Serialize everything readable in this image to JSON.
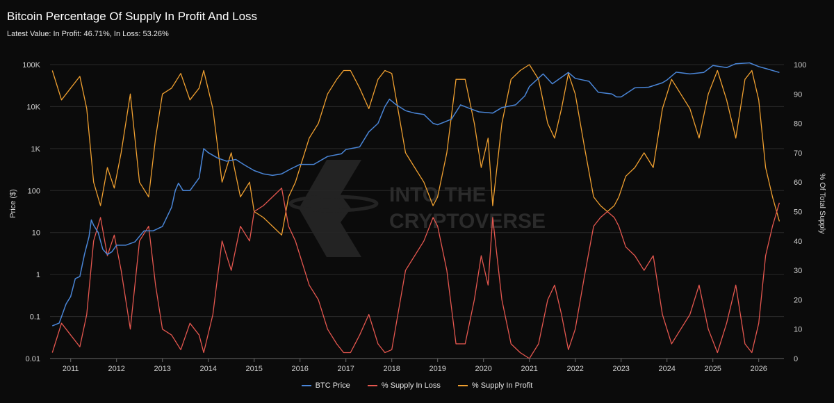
{
  "header": {
    "title": "Bitcoin Percentage Of Supply In Profit And Loss",
    "subtitle": "Latest Value: In Profit: 46.71%, In Loss: 53.26%"
  },
  "watermark": {
    "line1": "INTO THE",
    "line2": "CRYPTOVERSE"
  },
  "colors": {
    "background": "#0b0b0b",
    "price": "#4a86d8",
    "loss": "#e5574f",
    "profit": "#f0a030",
    "grid": "#2a2a2a"
  },
  "chart_data": {
    "type": "line",
    "title": "Bitcoin Percentage Of Supply In Profit And Loss",
    "subtitle": "Latest Value: In Profit: 46.71%, In Loss: 53.26%",
    "xlabel": "",
    "y_left_label": "Price ($)",
    "y_right_label": "% Of Total Supply",
    "x_range": [
      2010.55,
      2026.55
    ],
    "x_ticks": [
      "2011",
      "2012",
      "2013",
      "2014",
      "2015",
      "2016",
      "2017",
      "2018",
      "2019",
      "2020",
      "2021",
      "2022",
      "2023",
      "2024",
      "2025",
      "2026"
    ],
    "y_left_scale": "log",
    "y_left_range": [
      0.01,
      100000
    ],
    "y_left_ticks": [
      "0.01",
      "0.1",
      "1",
      "10",
      "100",
      "1K",
      "10K",
      "100K"
    ],
    "y_right_range": [
      0,
      100
    ],
    "y_right_ticks": [
      "0",
      "10",
      "20",
      "30",
      "40",
      "50",
      "60",
      "70",
      "80",
      "90",
      "100"
    ],
    "grid": "horizontal",
    "legend_position": "bottom-center",
    "latest": {
      "in_profit": 46.71,
      "in_loss": 53.26
    },
    "series": [
      {
        "name": "BTC Price",
        "axis": "left",
        "x": [
          2010.6,
          2010.75,
          2010.9,
          2011.0,
          2011.1,
          2011.2,
          2011.3,
          2011.4,
          2011.45,
          2011.5,
          2011.6,
          2011.7,
          2011.8,
          2011.9,
          2012.0,
          2012.2,
          2012.4,
          2012.6,
          2012.8,
          2013.0,
          2013.2,
          2013.28,
          2013.35,
          2013.45,
          2013.6,
          2013.8,
          2013.9,
          2014.0,
          2014.2,
          2014.4,
          2014.6,
          2014.8,
          2015.0,
          2015.2,
          2015.4,
          2015.6,
          2015.8,
          2016.0,
          2016.3,
          2016.6,
          2016.9,
          2017.0,
          2017.3,
          2017.5,
          2017.7,
          2017.85,
          2017.95,
          2018.1,
          2018.3,
          2018.5,
          2018.7,
          2018.9,
          2019.0,
          2019.3,
          2019.5,
          2019.7,
          2019.9,
          2020.2,
          2020.4,
          2020.7,
          2020.9,
          2021.0,
          2021.3,
          2021.5,
          2021.85,
          2022.0,
          2022.3,
          2022.5,
          2022.8,
          2022.9,
          2023.0,
          2023.3,
          2023.6,
          2023.9,
          2024.0,
          2024.2,
          2024.5,
          2024.8,
          2025.0,
          2025.3,
          2025.5,
          2025.8,
          2026.0,
          2026.2,
          2026.45
        ],
        "y": [
          0.06,
          0.07,
          0.2,
          0.3,
          0.8,
          0.9,
          3,
          8,
          20,
          15,
          10,
          4,
          3,
          3.5,
          5,
          5,
          6,
          11,
          11,
          14,
          40,
          100,
          150,
          100,
          100,
          200,
          1000,
          800,
          600,
          500,
          550,
          400,
          300,
          250,
          230,
          250,
          330,
          420,
          420,
          650,
          750,
          950,
          1100,
          2500,
          4000,
          10000,
          15000,
          11000,
          8000,
          7000,
          6500,
          4000,
          3700,
          5000,
          11000,
          9000,
          7500,
          7000,
          9500,
          11000,
          18000,
          30000,
          60000,
          35000,
          65000,
          47000,
          40000,
          22000,
          20000,
          17000,
          17000,
          28000,
          29000,
          37000,
          43000,
          66000,
          60000,
          65000,
          95000,
          85000,
          105000,
          110000,
          90000,
          78000,
          65000
        ]
      },
      {
        "name": "% Supply In Loss",
        "axis": "right",
        "x": [
          2010.6,
          2010.8,
          2011.0,
          2011.2,
          2011.35,
          2011.5,
          2011.65,
          2011.8,
          2011.95,
          2012.1,
          2012.3,
          2012.5,
          2012.7,
          2012.85,
          2013.0,
          2013.2,
          2013.4,
          2013.6,
          2013.8,
          2013.9,
          2014.1,
          2014.3,
          2014.5,
          2014.7,
          2014.9,
          2015.0,
          2015.2,
          2015.4,
          2015.6,
          2015.75,
          2015.9,
          2016.0,
          2016.2,
          2016.4,
          2016.6,
          2016.8,
          2016.95,
          2017.1,
          2017.3,
          2017.5,
          2017.7,
          2017.85,
          2018.0,
          2018.1,
          2018.3,
          2018.5,
          2018.7,
          2018.9,
          2019.0,
          2019.2,
          2019.4,
          2019.6,
          2019.8,
          2019.95,
          2020.1,
          2020.2,
          2020.4,
          2020.6,
          2020.8,
          2021.0,
          2021.2,
          2021.4,
          2021.55,
          2021.7,
          2021.85,
          2022.0,
          2022.2,
          2022.4,
          2022.55,
          2022.7,
          2022.85,
          2022.95,
          2023.1,
          2023.3,
          2023.5,
          2023.7,
          2023.9,
          2024.1,
          2024.3,
          2024.5,
          2024.7,
          2024.9,
          2025.1,
          2025.3,
          2025.5,
          2025.7,
          2025.85,
          2026.0,
          2026.15,
          2026.3,
          2026.45
        ],
        "y": [
          2,
          12,
          8,
          4,
          15,
          40,
          48,
          35,
          42,
          30,
          10,
          40,
          45,
          25,
          10,
          8,
          3,
          12,
          8,
          2,
          15,
          40,
          30,
          45,
          40,
          50,
          52,
          55,
          58,
          45,
          40,
          35,
          25,
          20,
          10,
          5,
          2,
          2,
          8,
          15,
          5,
          2,
          3,
          12,
          30,
          35,
          40,
          48,
          45,
          30,
          5,
          5,
          20,
          35,
          25,
          48,
          20,
          5,
          2,
          0,
          5,
          20,
          25,
          15,
          3,
          10,
          28,
          45,
          48,
          50,
          48,
          45,
          38,
          35,
          30,
          35,
          15,
          5,
          10,
          15,
          25,
          10,
          2,
          12,
          25,
          5,
          2,
          12,
          35,
          45,
          53
        ]
      },
      {
        "name": "% Supply In Profit",
        "axis": "right",
        "x": [
          2010.6,
          2010.8,
          2011.0,
          2011.2,
          2011.35,
          2011.5,
          2011.65,
          2011.8,
          2011.95,
          2012.1,
          2012.3,
          2012.5,
          2012.7,
          2012.85,
          2013.0,
          2013.2,
          2013.4,
          2013.6,
          2013.8,
          2013.9,
          2014.1,
          2014.3,
          2014.5,
          2014.7,
          2014.9,
          2015.0,
          2015.2,
          2015.4,
          2015.6,
          2015.75,
          2015.9,
          2016.0,
          2016.2,
          2016.4,
          2016.6,
          2016.8,
          2016.95,
          2017.1,
          2017.3,
          2017.5,
          2017.7,
          2017.85,
          2018.0,
          2018.1,
          2018.3,
          2018.5,
          2018.7,
          2018.9,
          2019.0,
          2019.2,
          2019.4,
          2019.6,
          2019.8,
          2019.95,
          2020.1,
          2020.2,
          2020.4,
          2020.6,
          2020.8,
          2021.0,
          2021.2,
          2021.4,
          2021.55,
          2021.7,
          2021.85,
          2022.0,
          2022.2,
          2022.4,
          2022.55,
          2022.7,
          2022.85,
          2022.95,
          2023.1,
          2023.3,
          2023.5,
          2023.7,
          2023.9,
          2024.1,
          2024.3,
          2024.5,
          2024.7,
          2024.9,
          2025.1,
          2025.3,
          2025.5,
          2025.7,
          2025.85,
          2026.0,
          2026.15,
          2026.3,
          2026.45
        ],
        "y": [
          98,
          88,
          92,
          96,
          85,
          60,
          52,
          65,
          58,
          70,
          90,
          60,
          55,
          75,
          90,
          92,
          97,
          88,
          92,
          98,
          85,
          60,
          70,
          55,
          60,
          50,
          48,
          45,
          42,
          55,
          60,
          65,
          75,
          80,
          90,
          95,
          98,
          98,
          92,
          85,
          95,
          98,
          97,
          88,
          70,
          65,
          60,
          52,
          55,
          70,
          95,
          95,
          80,
          65,
          75,
          52,
          80,
          95,
          98,
          100,
          95,
          80,
          75,
          85,
          97,
          90,
          72,
          55,
          52,
          50,
          52,
          55,
          62,
          65,
          70,
          65,
          85,
          95,
          90,
          85,
          75,
          90,
          98,
          88,
          75,
          95,
          98,
          88,
          65,
          55,
          46.7
        ]
      }
    ]
  },
  "legend": {
    "price_label": "BTC Price",
    "loss_label": "% Supply In Loss",
    "profit_label": "% Supply In Profit"
  }
}
